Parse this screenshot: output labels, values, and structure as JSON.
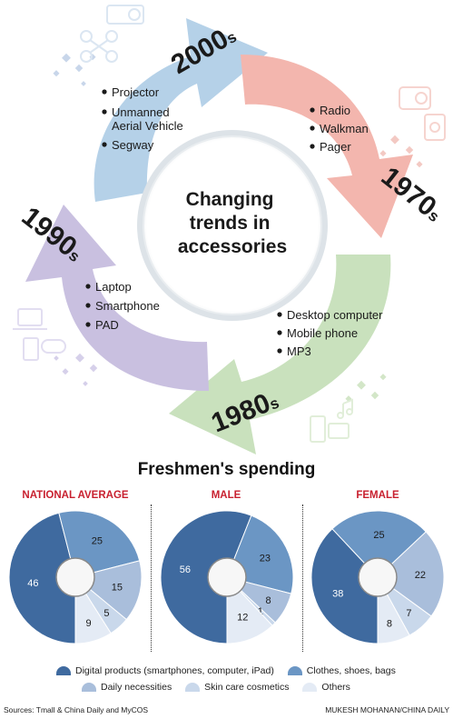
{
  "center_title": [
    "Changing",
    "trends in",
    "accessories"
  ],
  "eras": [
    {
      "decade": "2000",
      "suffix": "s",
      "color": "#b5d1e8",
      "items": [
        "Projector",
        "Unmanned",
        "Aerial Vehicle",
        "Segway"
      ]
    },
    {
      "decade": "1970",
      "suffix": "s",
      "color": "#f3b6ae",
      "items": [
        "Radio",
        "Walkman",
        "Pager"
      ]
    },
    {
      "decade": "1980",
      "suffix": "s",
      "color": "#c9e1bd",
      "items": [
        "Desktop computer",
        "Mobile phone",
        "MP3"
      ]
    },
    {
      "decade": "1990",
      "suffix": "s",
      "color": "#c9c0e0",
      "items": [
        "Laptop",
        "Smartphone",
        "PAD"
      ]
    }
  ],
  "icons": [
    {
      "name": "projector-icon"
    },
    {
      "name": "drone-icon"
    },
    {
      "name": "radio-icon"
    },
    {
      "name": "walkman-icon"
    },
    {
      "name": "phone-icon"
    },
    {
      "name": "music-note-icon"
    },
    {
      "name": "laptop-icon"
    },
    {
      "name": "tablet-icon"
    },
    {
      "name": "gamepad-icon"
    }
  ],
  "spending": {
    "title": "Freshmen's spending",
    "sources": "Sources: Tmall & China Daily and MyCOS",
    "credit": "MUKESH MOHANAN/CHINA DAILY"
  },
  "chart_data": [
    {
      "type": "pie",
      "title": "NATIONAL AVERAGE",
      "labels": [
        "Digital products (smartphones, computer, iPad)",
        "Clothes, shoes, bags",
        "Daily necessities",
        "Skin care cosmetics",
        "Others"
      ],
      "values": [
        46,
        25,
        15,
        5,
        9
      ]
    },
    {
      "type": "pie",
      "title": "MALE",
      "labels": [
        "Digital products (smartphones, computer, iPad)",
        "Clothes, shoes, bags",
        "Daily necessities",
        "Skin care cosmetics",
        "Others"
      ],
      "values": [
        56,
        23,
        8,
        1,
        12
      ]
    },
    {
      "type": "pie",
      "title": "FEMALE",
      "labels": [
        "Digital products (smartphones, computer, iPad)",
        "Clothes, shoes, bags",
        "Daily necessities",
        "Skin care cosmetics",
        "Others"
      ],
      "values": [
        38,
        25,
        22,
        7,
        8
      ]
    }
  ],
  "legend": [
    {
      "label": "Digital products (smartphones, computer, iPad)",
      "color": "#3f6a9f"
    },
    {
      "label": "Clothes, shoes, bags",
      "color": "#6b96c4"
    },
    {
      "label": "Daily necessities",
      "color": "#a9bedb"
    },
    {
      "label": "Skin care cosmetics",
      "color": "#c9d8eb"
    },
    {
      "label": "Others",
      "color": "#e4ebf5"
    }
  ]
}
